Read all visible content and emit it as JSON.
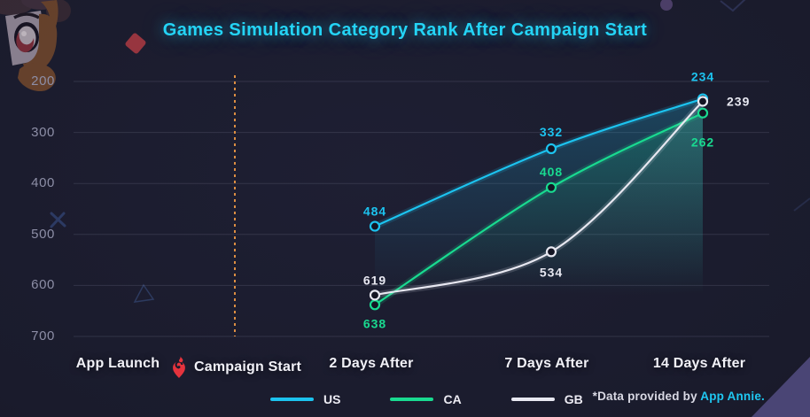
{
  "title": "Games Simulation Category Rank After Campaign Start",
  "chart_data": {
    "type": "line",
    "title": "Games Simulation Category Rank After Campaign Start",
    "categories": [
      "App Launch",
      "Campaign Start",
      "2 Days After",
      "7 Days After",
      "14 Days After"
    ],
    "data_categories": [
      "2 Days After",
      "7 Days After",
      "14 Days After"
    ],
    "y_ticks": [
      "200",
      "300",
      "400",
      "500",
      "600",
      "700"
    ],
    "ylim": [
      700,
      200
    ],
    "y_inverted": true,
    "grid": true,
    "legend_position": "bottom",
    "series": [
      {
        "name": "US",
        "color": "#1cc3ef",
        "fill_opacity": 0.24,
        "values": [
          484,
          332,
          234
        ]
      },
      {
        "name": "CA",
        "color": "#19da90",
        "fill_opacity": 0.2,
        "values": [
          638,
          408,
          262
        ]
      },
      {
        "name": "GB",
        "color": "#e8e8f1",
        "fill_opacity": 0.07,
        "values": [
          619,
          534,
          239
        ]
      }
    ],
    "annotations": {
      "campaign_start_marker": "Campaign Start",
      "marker_line_color": "#dc8e42"
    }
  },
  "footer": {
    "credit_prefix": "*Data provided by ",
    "credit_brand": "App Annie."
  },
  "icons": {
    "flame_pin": {
      "name": "flame-pin-icon",
      "color": "#e5333d"
    }
  },
  "colors": {
    "background": "#1a1b2c",
    "accent_cyan": "#24d4f6",
    "grid": "rgba(205,210,240,0.13)",
    "axis_text": "#8d8ea6",
    "campaign_line": "#dc8e42",
    "corner_triangle": "#4a4575"
  }
}
